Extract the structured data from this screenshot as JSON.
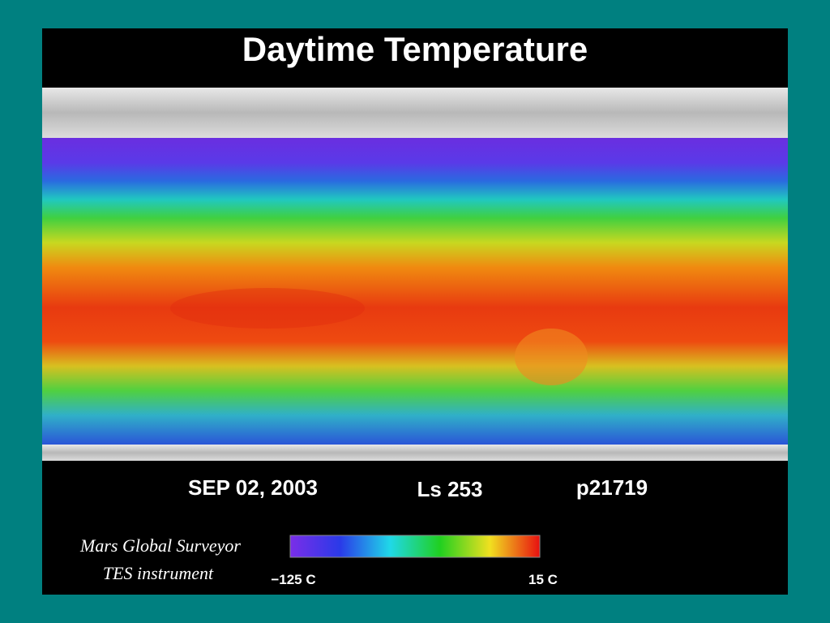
{
  "title": "Daytime Temperature",
  "footer": {
    "date": "SEP 02, 2003",
    "season": "Ls 253",
    "product": "p21719"
  },
  "credit": {
    "line1": "Mars Global Surveyor",
    "line2": "TES instrument"
  },
  "colorbar": {
    "min_label": "−125 C",
    "max_label": "15 C"
  }
}
